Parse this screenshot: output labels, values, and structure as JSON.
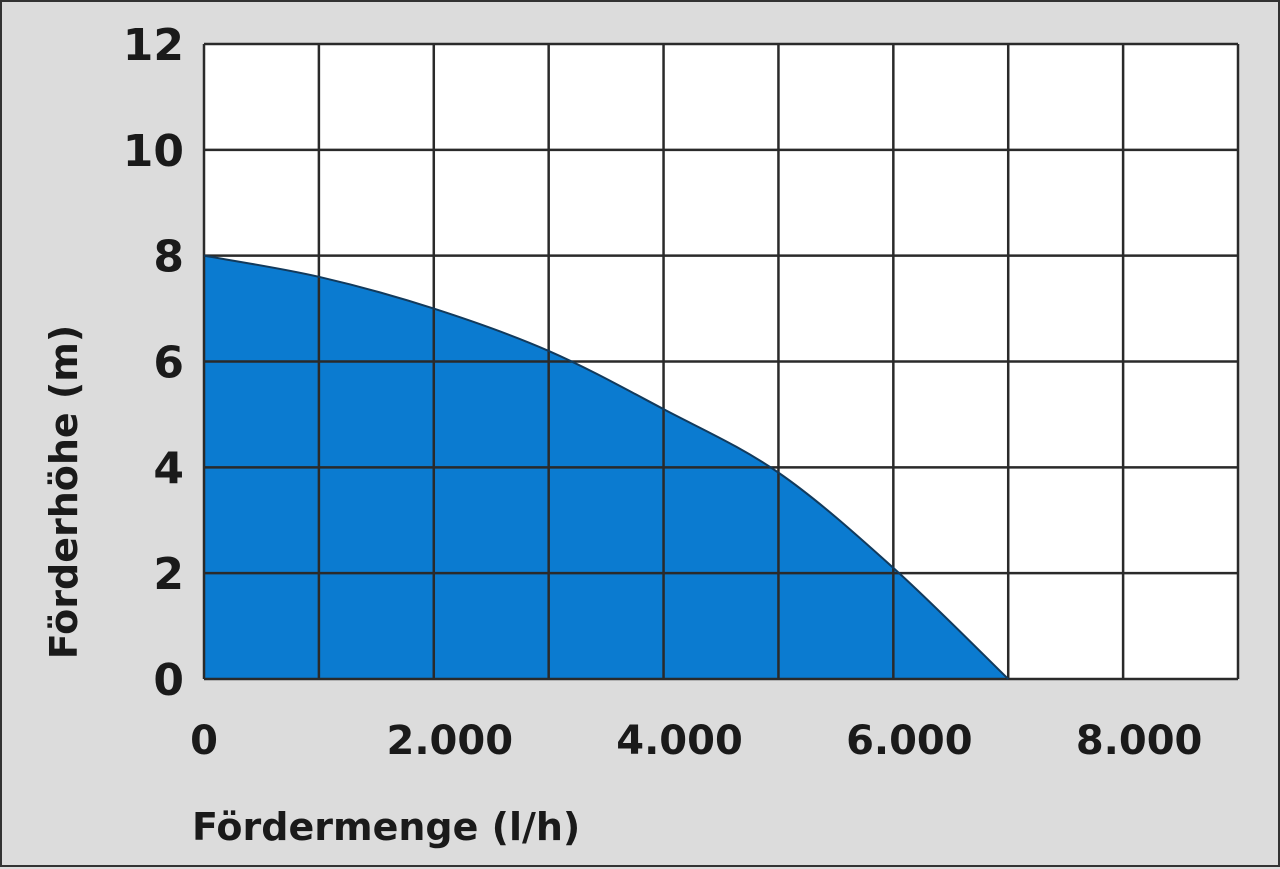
{
  "chart_data": {
    "type": "area",
    "title": "",
    "xlabel": "Fördermenge (l/h)",
    "ylabel": "Förderhöhe (m)",
    "xlim": [
      0,
      9000
    ],
    "ylim": [
      0,
      12
    ],
    "x_grid_step": 1000,
    "y_grid_step": 2,
    "grid": true,
    "x_ticks": [
      0,
      2000,
      4000,
      6000,
      8000
    ],
    "x_tick_labels": [
      "0",
      "2.000",
      "4.000",
      "6.000",
      "8.000"
    ],
    "y_ticks": [
      0,
      2,
      4,
      6,
      8,
      10,
      12
    ],
    "y_tick_labels": [
      "0",
      "2",
      "4",
      "6",
      "8",
      "10",
      "12"
    ],
    "series": [
      {
        "x": [
          0,
          1000,
          2000,
          3000,
          4000,
          5000,
          6000,
          7000
        ],
        "y": [
          8.0,
          7.6,
          7.0,
          6.2,
          5.1,
          3.9,
          2.1,
          0
        ],
        "color": "#0b7bd0"
      }
    ],
    "background_color": "#dcdcdc",
    "plot_background": "#ffffff",
    "grid_color": "#2a2a2a"
  }
}
